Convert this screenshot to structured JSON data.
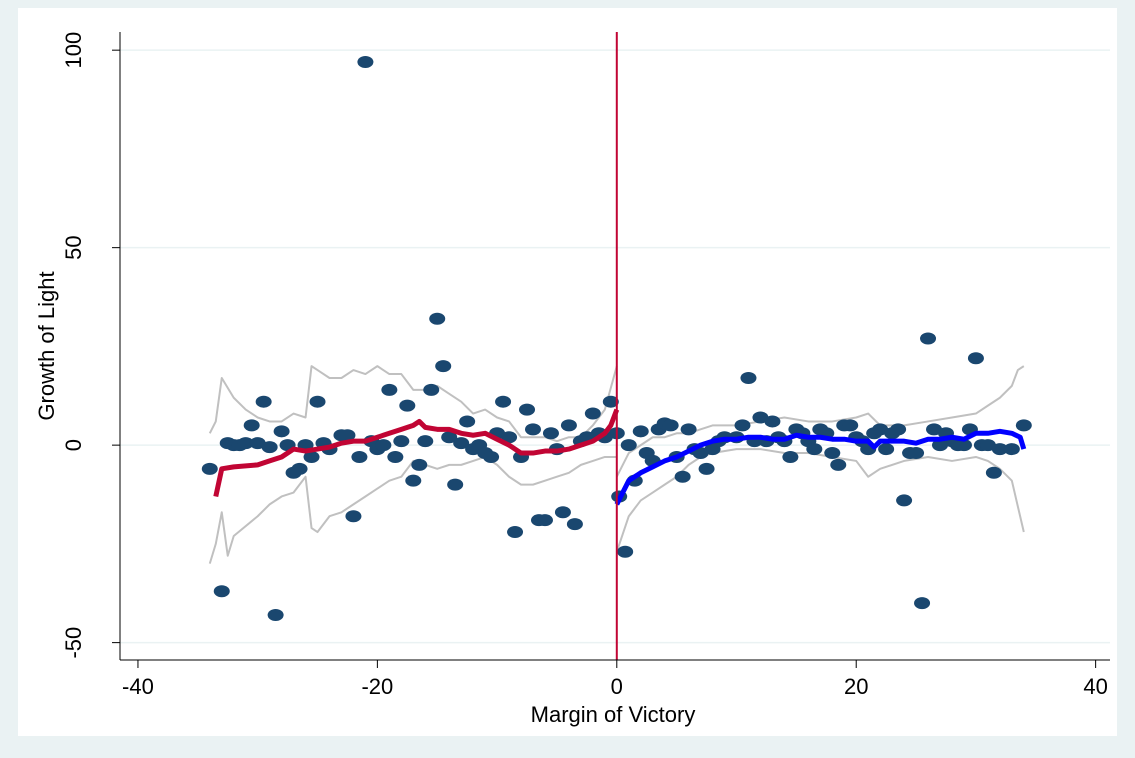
{
  "chart_data": {
    "type": "scatter",
    "xlabel": "Margin of Victory",
    "ylabel": "Growth of Light",
    "xlim": [
      -41.5,
      41.2
    ],
    "ylim": [
      -54.4,
      104.6
    ],
    "xticks": [
      -40,
      -20,
      0,
      20,
      40
    ],
    "yticks": [
      -50,
      0,
      50,
      100
    ],
    "grid": true,
    "grid_color": "#eaf2f3",
    "reference_line": {
      "x": 0,
      "color": "#c10534"
    },
    "series": [
      {
        "type": "scatter",
        "color": "#1a476f",
        "x": [
          -34,
          -33,
          -32.5,
          -32,
          -31.5,
          -31,
          -30.5,
          -30,
          -29.5,
          -29,
          -28.5,
          -28,
          -27.5,
          -27,
          -26.5,
          -26,
          -25.5,
          -25,
          -24.5,
          -24,
          -23,
          -22.5,
          -22,
          -21.5,
          -21,
          -20.5,
          -20,
          -19.5,
          -19,
          -18.5,
          -18,
          -17.5,
          -17,
          -16.5,
          -16,
          -15.5,
          -15,
          -14.5,
          -14,
          -13.5,
          -13,
          -12.5,
          -12,
          -11.5,
          -11,
          -10.5,
          -10,
          -9.5,
          -9,
          -8.5,
          -8,
          -7.5,
          -7,
          -6.5,
          -6,
          -5.5,
          -5,
          -4.5,
          -4,
          -3.5,
          -3,
          -2.5,
          -2,
          -1.5,
          -1,
          -0.5,
          0,
          0.2,
          0.7,
          1,
          1.5,
          2,
          2.5,
          3,
          3.5,
          4,
          4.5,
          5,
          5.5,
          6,
          6.5,
          7,
          7.5,
          8,
          8.5,
          9,
          10,
          10.5,
          11,
          11.5,
          12,
          12.5,
          13,
          13.5,
          14,
          14.5,
          15,
          15.5,
          16,
          16.5,
          17,
          17.5,
          18,
          18.5,
          19,
          19.5,
          20,
          20.5,
          21,
          21.5,
          22,
          22.5,
          23,
          23.5,
          24,
          24.5,
          25,
          25.5,
          26,
          26.5,
          27,
          27.5,
          28,
          28.5,
          29,
          29.5,
          30,
          30.5,
          31,
          31.5,
          32,
          33,
          34
        ],
        "values": [
          -6,
          -37,
          0.5,
          0,
          0,
          0.5,
          5,
          0.5,
          11,
          -0.5,
          -43,
          3.5,
          0,
          -7,
          -6,
          0,
          -3,
          11,
          0.5,
          -1,
          2.5,
          2.5,
          -18,
          -3,
          97,
          1,
          -1,
          0,
          14,
          -3,
          1,
          10,
          -9,
          -5,
          1,
          14,
          32,
          20,
          2,
          -10,
          0.5,
          6,
          -1,
          0,
          -2,
          -3,
          3,
          11,
          2,
          -22,
          -3,
          9,
          4,
          -19,
          -19,
          3,
          -1,
          -17,
          5,
          -20,
          1,
          2,
          8,
          3,
          2,
          11,
          3,
          -13,
          -27,
          0,
          -9,
          3.5,
          -2,
          -4,
          4,
          5.5,
          5,
          -3,
          -8,
          4,
          -1,
          -2,
          -6,
          -1,
          1,
          2,
          2,
          5,
          17,
          1,
          7,
          1,
          6,
          2,
          1,
          -3,
          4,
          3,
          1,
          -1,
          4,
          3,
          -2,
          -5,
          5,
          5,
          2,
          1,
          -1,
          3,
          4,
          -1,
          3,
          4,
          -14,
          -2,
          -2,
          -40,
          27,
          4,
          0,
          3,
          1,
          0,
          0,
          4,
          22,
          0,
          0,
          -7,
          -1,
          -1,
          5
        ]
      },
      {
        "type": "line",
        "color": "#c10534",
        "width": 5,
        "x": [
          -33.5,
          -33,
          -32,
          -30,
          -29,
          -28,
          -27,
          -26,
          -25,
          -24,
          -23,
          -22,
          -21,
          -20,
          -19,
          -18,
          -17,
          -16.5,
          -16,
          -15,
          -14,
          -13,
          -12,
          -11,
          -10,
          -9,
          -8,
          -7,
          -6,
          -5,
          -4,
          -3,
          -2,
          -1,
          -0.5,
          0
        ],
        "values": [
          -13,
          -6,
          -5.5,
          -5,
          -4,
          -3,
          -1,
          -1.5,
          -1,
          -0.5,
          0.5,
          1,
          1,
          2,
          3,
          4,
          5,
          6,
          4.5,
          4,
          4,
          3,
          2.5,
          3,
          1.5,
          0,
          -2,
          -2,
          -1.5,
          -1.5,
          -1,
          0,
          1,
          3,
          5,
          9
        ]
      },
      {
        "type": "line",
        "color": "#0000ff",
        "width": 5,
        "x": [
          0,
          0.5,
          1,
          2,
          3,
          4,
          5,
          6,
          7,
          8,
          9,
          10,
          11,
          12,
          13,
          14,
          15,
          16,
          17,
          18,
          19,
          20,
          21,
          21.5,
          22,
          23,
          24,
          25,
          26,
          27,
          28,
          29,
          30,
          31,
          32,
          33,
          33.7,
          34
        ],
        "values": [
          -15,
          -12,
          -9,
          -7,
          -5.5,
          -4,
          -3,
          -1.5,
          0,
          1,
          1.5,
          1.5,
          2,
          2,
          1.5,
          1.5,
          2.5,
          2,
          2,
          1.5,
          1.5,
          1,
          1,
          -0.5,
          1,
          1,
          1,
          0.5,
          1.5,
          1.5,
          2,
          1.5,
          3,
          3,
          3.5,
          3,
          2,
          -1
        ]
      },
      {
        "type": "line",
        "color": "#c0c0c0",
        "width": 2,
        "x": [
          -34,
          -33.5,
          -33,
          -32,
          -31,
          -30,
          -29,
          -28,
          -27,
          -26,
          -25.5,
          -25,
          -24,
          -23,
          -22,
          -21,
          -20,
          -19,
          -18,
          -17,
          -16,
          -15,
          -14,
          -13,
          -12,
          -11,
          -10,
          -9,
          -8,
          -7,
          -6,
          -5,
          -4,
          -3,
          -2,
          -1,
          0
        ],
        "values": [
          3,
          6,
          17,
          12,
          9,
          7,
          6,
          6,
          8,
          7,
          20,
          19,
          17,
          17,
          19,
          18,
          20,
          18,
          18,
          14,
          14,
          15,
          13,
          11,
          8,
          9,
          7,
          6,
          2,
          2,
          2,
          1,
          2,
          2,
          5,
          9,
          20
        ]
      },
      {
        "type": "line",
        "color": "#c0c0c0",
        "width": 2,
        "x": [
          -34,
          -33.5,
          -33,
          -32.5,
          -32,
          -30,
          -29,
          -28,
          -27,
          -26,
          -25.5,
          -25,
          -24,
          -23,
          -22,
          -21,
          -20,
          -19,
          -18,
          -17,
          -16,
          -15,
          -14,
          -13,
          -12,
          -11,
          -10,
          -9,
          -8,
          -7,
          -6,
          -5,
          -4,
          -3,
          -2,
          -1,
          0
        ],
        "values": [
          -30,
          -25,
          -17,
          -28,
          -23,
          -18,
          -15,
          -13,
          -12,
          -8,
          -21,
          -22,
          -18,
          -17,
          -15,
          -13,
          -11,
          -9,
          -8,
          -4,
          -5,
          -6,
          -5,
          -5,
          -4,
          -3,
          -5,
          -8,
          -10,
          -10,
          -9,
          -8,
          -7,
          -5,
          -4,
          -3,
          -3
        ]
      },
      {
        "type": "line",
        "color": "#c0c0c0",
        "width": 2,
        "x": [
          0,
          1,
          2,
          3,
          4,
          5,
          6,
          7,
          8,
          9,
          10,
          12,
          14,
          16,
          18,
          20,
          21,
          22,
          24,
          26,
          28,
          30,
          31,
          32,
          33,
          33.5,
          34
        ],
        "values": [
          -8,
          -2,
          0,
          2,
          2,
          3,
          3,
          4,
          5,
          5,
          5,
          6,
          7,
          6,
          6,
          7,
          8,
          5,
          5,
          6,
          7,
          8,
          10,
          12,
          15,
          19,
          20
        ]
      },
      {
        "type": "line",
        "color": "#c0c0c0",
        "width": 2,
        "x": [
          0,
          1,
          2,
          3,
          4,
          5,
          6,
          7,
          8,
          10,
          12,
          14,
          16,
          18,
          20,
          21,
          22,
          24,
          26,
          28,
          30,
          31,
          32,
          33,
          34
        ],
        "values": [
          -27,
          -18,
          -14,
          -12,
          -10,
          -8,
          -5,
          -3,
          -2,
          -1,
          -1,
          -2,
          -2,
          -3,
          -4,
          -8,
          -6,
          -4,
          -3,
          -4,
          -3,
          -4,
          -6,
          -9,
          -22
        ]
      }
    ]
  }
}
